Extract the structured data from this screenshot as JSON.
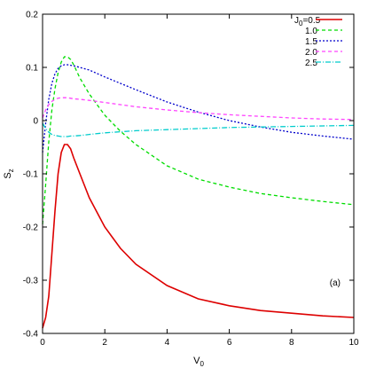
{
  "chart_data": {
    "type": "line",
    "title": "",
    "xlabel": "V",
    "xlabel_sub": "0",
    "ylabel": "S",
    "ylabel_sub": "z",
    "xlim": [
      0,
      10
    ],
    "ylim": [
      -0.4,
      0.2
    ],
    "x_ticks": [
      0,
      2,
      4,
      6,
      8,
      10
    ],
    "y_ticks": [
      -0.4,
      -0.3,
      -0.2,
      -0.1,
      0,
      0.1,
      0.2
    ],
    "x_tick_labels": [
      "0",
      "2",
      "4",
      "6",
      "8",
      "10"
    ],
    "y_tick_labels": [
      "-0.4",
      "-0.3",
      "-0.2",
      "-0.1",
      "0",
      "0.1",
      "0.2"
    ],
    "grid": false,
    "legend_position": "top-right",
    "legend_title": "J",
    "legend_title_sub": "0",
    "annotation": "(a)",
    "series": [
      {
        "name": "=0.5",
        "color": "#dd0000",
        "dash": "solid",
        "x": [
          0,
          0.1,
          0.2,
          0.3,
          0.4,
          0.5,
          0.6,
          0.7,
          0.8,
          0.9,
          1.0,
          1.2,
          1.5,
          2,
          2.5,
          3,
          4,
          5,
          6,
          7,
          8,
          9,
          10
        ],
        "y": [
          -0.39,
          -0.37,
          -0.33,
          -0.25,
          -0.17,
          -0.1,
          -0.06,
          -0.045,
          -0.045,
          -0.053,
          -0.07,
          -0.1,
          -0.145,
          -0.2,
          -0.24,
          -0.27,
          -0.31,
          -0.335,
          -0.348,
          -0.357,
          -0.362,
          -0.367,
          -0.37
        ]
      },
      {
        "name": "1.0",
        "color": "#00dd00",
        "dash": "dash",
        "x": [
          0,
          0.1,
          0.2,
          0.3,
          0.4,
          0.5,
          0.6,
          0.7,
          0.8,
          0.9,
          1.0,
          1.2,
          1.5,
          2,
          2.5,
          3,
          4,
          5,
          6,
          7,
          8,
          9,
          10
        ],
        "y": [
          -0.195,
          -0.12,
          -0.04,
          0.02,
          0.06,
          0.09,
          0.11,
          0.12,
          0.12,
          0.115,
          0.105,
          0.08,
          0.05,
          0.01,
          -0.02,
          -0.045,
          -0.085,
          -0.11,
          -0.125,
          -0.137,
          -0.145,
          -0.152,
          -0.158
        ]
      },
      {
        "name": "1.5",
        "color": "#0000cc",
        "dash": "dot",
        "x": [
          0,
          0.1,
          0.2,
          0.3,
          0.4,
          0.5,
          0.6,
          0.7,
          0.8,
          0.9,
          1.0,
          1.2,
          1.5,
          2,
          2.5,
          3,
          4,
          5,
          6,
          7,
          8,
          9,
          10
        ],
        "y": [
          -0.06,
          -0.005,
          0.04,
          0.07,
          0.088,
          0.098,
          0.103,
          0.105,
          0.105,
          0.104,
          0.103,
          0.1,
          0.095,
          0.082,
          0.07,
          0.058,
          0.035,
          0.016,
          0.0,
          -0.012,
          -0.022,
          -0.029,
          -0.035
        ]
      },
      {
        "name": "2.0",
        "color": "#ff44ff",
        "dash": "dash",
        "x": [
          0,
          0.1,
          0.2,
          0.3,
          0.4,
          0.5,
          0.6,
          0.7,
          0.8,
          0.9,
          1.0,
          1.2,
          1.5,
          2,
          2.5,
          3,
          4,
          5,
          6,
          7,
          8,
          9,
          10
        ],
        "y": [
          0.005,
          0.02,
          0.03,
          0.036,
          0.04,
          0.042,
          0.043,
          0.043,
          0.043,
          0.042,
          0.041,
          0.04,
          0.038,
          0.034,
          0.03,
          0.026,
          0.02,
          0.015,
          0.011,
          0.008,
          0.005,
          0.003,
          0.002
        ]
      },
      {
        "name": "2.5",
        "color": "#00cccc",
        "dash": "dashdot",
        "x": [
          0,
          0.1,
          0.2,
          0.3,
          0.4,
          0.5,
          0.6,
          0.7,
          0.8,
          0.9,
          1.0,
          1.2,
          1.5,
          2,
          2.5,
          3,
          4,
          5,
          6,
          7,
          8,
          9,
          10
        ],
        "y": [
          -0.005,
          -0.015,
          -0.022,
          -0.026,
          -0.028,
          -0.029,
          -0.03,
          -0.03,
          -0.03,
          -0.029,
          -0.029,
          -0.028,
          -0.026,
          -0.023,
          -0.021,
          -0.019,
          -0.017,
          -0.015,
          -0.013,
          -0.012,
          -0.011,
          -0.01,
          -0.009
        ]
      }
    ]
  }
}
